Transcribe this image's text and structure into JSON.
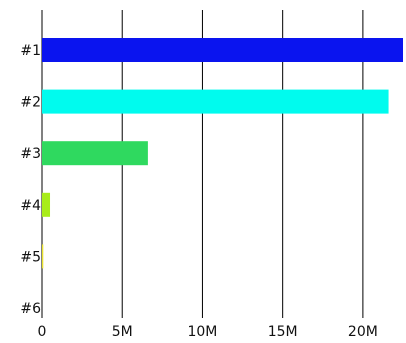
{
  "chart_data": {
    "type": "bar",
    "orientation": "horizontal",
    "categories": [
      "#1",
      "#2",
      "#3",
      "#4",
      "#5",
      "#6"
    ],
    "values": [
      22500000,
      21600000,
      6600000,
      500000,
      80000,
      0
    ],
    "colors": [
      "#0a14ef",
      "#00fbee",
      "#2fd95f",
      "#a8ec1a",
      "#e8e12c",
      "#f2a93b"
    ],
    "xlim": [
      0,
      22500000
    ],
    "xticks": [
      0,
      5000000,
      10000000,
      15000000,
      20000000
    ],
    "xtick_labels": [
      "0",
      "5M",
      "10M",
      "15M",
      "20M"
    ],
    "grid": "vertical",
    "legend": "none"
  }
}
